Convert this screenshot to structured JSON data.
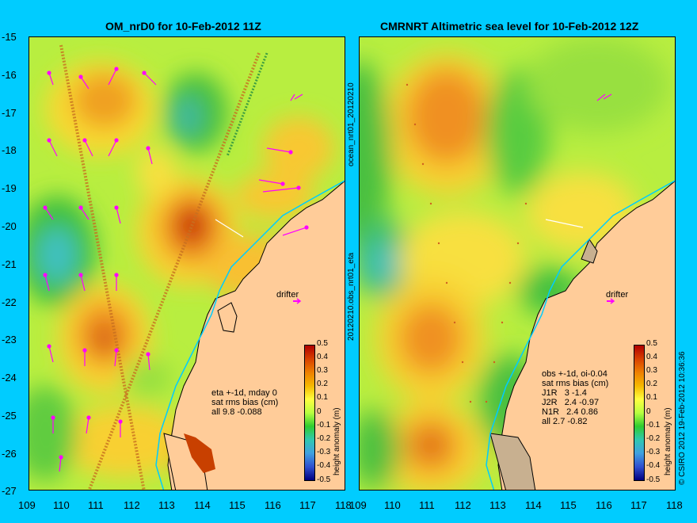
{
  "left_panel": {
    "title": "OM_nrD0 for 10-Feb-2012 11Z",
    "info_lines": [
      "eta +-1d, mday 0",
      "sat rms bias (cm)",
      "all 9.8 -0.088"
    ],
    "drifter_label": "drifter"
  },
  "right_panel": {
    "title": "CMRNRT Altimetric sea level  for 10-Feb-2012 12Z",
    "info_lines": [
      "obs +-1d, oi-0.04",
      "sat rms bias (cm)",
      "J1R   3 -1.4",
      "J2R   2.4 -0.97",
      "N1R   2.4 0.86",
      "all 2.7 -0.82"
    ],
    "drifter_label": "drifter"
  },
  "y_ticks": [
    "-15",
    "-16",
    "-17",
    "-18",
    "-19",
    "-20",
    "-21",
    "-22",
    "-23",
    "-24",
    "-25",
    "-26",
    "-27"
  ],
  "x_ticks": [
    "109",
    "110",
    "111",
    "112",
    "113",
    "114",
    "115",
    "116",
    "117",
    "118"
  ],
  "colorbar": {
    "ticks": [
      "0.5",
      "0.4",
      "0.3",
      "0.2",
      "0.1",
      "0",
      "-0.1",
      "-0.2",
      "-0.3",
      "-0.4",
      "-0.5"
    ],
    "label": "height anomaly (m)"
  },
  "side_labels": {
    "top": "ocean_nrt01_20120210",
    "bottom": "20120210.obs_nrt01_eta"
  },
  "copyright": "© CSIRO 2012   19-Feb-2012 10:36:36",
  "colors": {
    "background": "#00ccff",
    "land": "#ffcc99",
    "vectors": "#ff00ff",
    "coast": "#00ccff"
  }
}
